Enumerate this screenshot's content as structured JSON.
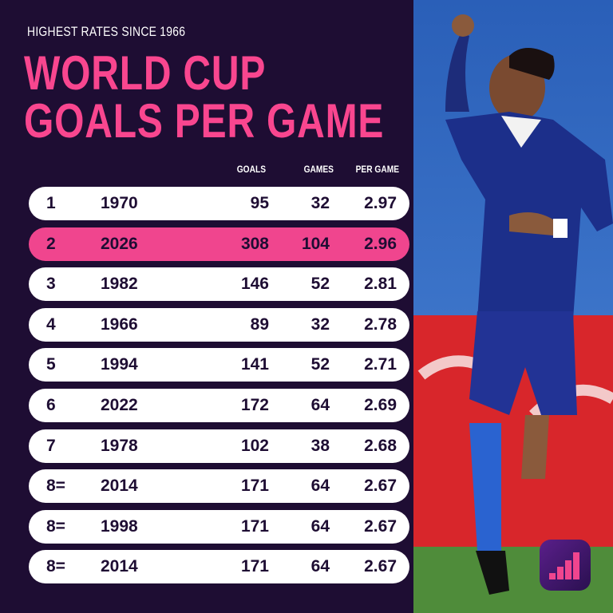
{
  "header": {
    "subtitle": "HIGHEST RATES SINCE 1966",
    "title_lines": [
      "WORLD CUP",
      "GOALS PER GAME"
    ]
  },
  "table": {
    "columns": [
      "GOALS",
      "GAMES",
      "PER GAME"
    ],
    "highlighted_row_index": 1,
    "rows": [
      [
        "1",
        "1970",
        "95",
        "32",
        "2.97"
      ],
      [
        "2",
        "2026",
        "308",
        "104",
        "2.96"
      ],
      [
        "3",
        "1982",
        "146",
        "52",
        "2.81"
      ],
      [
        "4",
        "1966",
        "89",
        "32",
        "2.78"
      ],
      [
        "5",
        "1994",
        "141",
        "52",
        "2.71"
      ],
      [
        "6",
        "2022",
        "172",
        "64",
        "2.69"
      ],
      [
        "7",
        "1978",
        "102",
        "38",
        "2.68"
      ],
      [
        "8=",
        "2014",
        "171",
        "64",
        "2.67"
      ],
      [
        "8=",
        "1998",
        "171",
        "64",
        "2.67"
      ],
      [
        "8=",
        "2014",
        "171",
        "64",
        "2.67"
      ]
    ]
  }
}
